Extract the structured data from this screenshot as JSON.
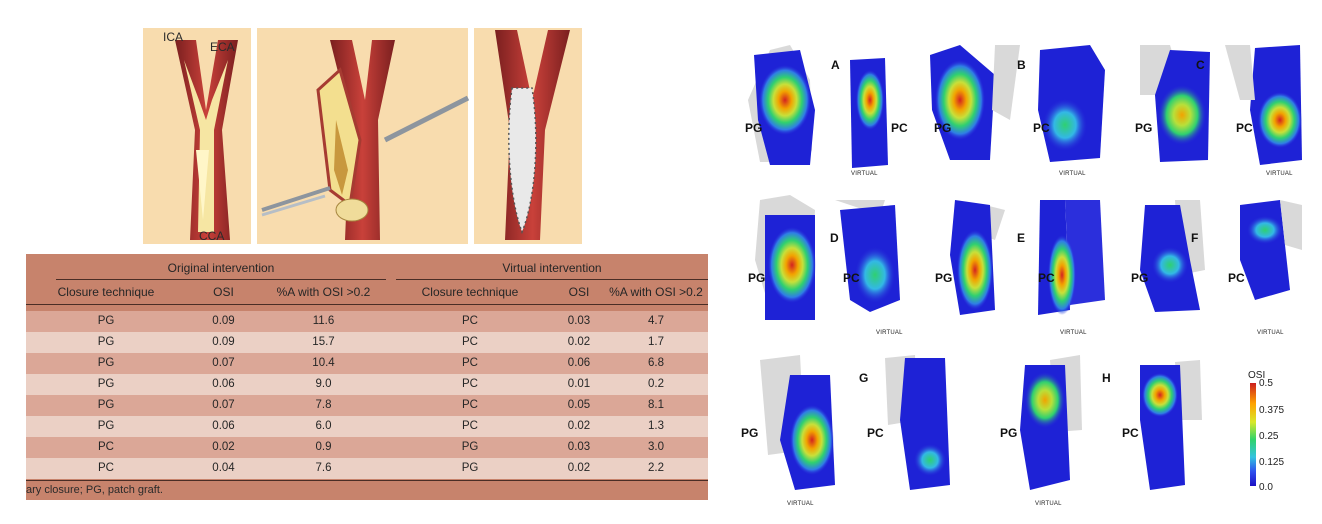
{
  "illustration": {
    "labels": {
      "ica": "ICA",
      "eca": "ECA",
      "cca": "CCA"
    }
  },
  "table": {
    "group_headers": {
      "original": "Original intervention",
      "virtual": "Virtual intervention"
    },
    "columns": [
      "Closure technique",
      "OSI",
      "%A with OSI >0.2",
      "Closure technique",
      "OSI",
      "%A with OSI >0.2"
    ],
    "rows": [
      [
        "PG",
        "0.09",
        "11.6",
        "PC",
        "0.03",
        "4.7"
      ],
      [
        "PG",
        "0.09",
        "15.7",
        "PC",
        "0.02",
        "1.7"
      ],
      [
        "PG",
        "0.07",
        "10.4",
        "PC",
        "0.06",
        "6.8"
      ],
      [
        "PG",
        "0.06",
        "9.0",
        "PC",
        "0.01",
        "0.2"
      ],
      [
        "PG",
        "0.07",
        "7.8",
        "PC",
        "0.05",
        "8.1"
      ],
      [
        "PG",
        "0.06",
        "6.0",
        "PC",
        "0.02",
        "1.3"
      ],
      [
        "PC",
        "0.02",
        "0.9",
        "PG",
        "0.03",
        "3.0"
      ],
      [
        "PC",
        "0.04",
        "7.6",
        "PG",
        "0.02",
        "2.2"
      ]
    ],
    "footnote": "ary closure; PG, patch graft."
  },
  "figure": {
    "panel_letters": [
      "A",
      "B",
      "C",
      "D",
      "E",
      "F",
      "G",
      "H"
    ],
    "pg_label": "PG",
    "pc_label": "PC",
    "virtual_label": "VIRTUAL",
    "colorbar": {
      "title": "OSI",
      "ticks": [
        "0.5",
        "0.375",
        "0.25",
        "0.125",
        "0.0"
      ],
      "colors": [
        "#cc1f1f",
        "#ffa200",
        "#d8e82a",
        "#2fd36a",
        "#33c3e0",
        "#2f50ee",
        "#1d10c4"
      ]
    }
  }
}
